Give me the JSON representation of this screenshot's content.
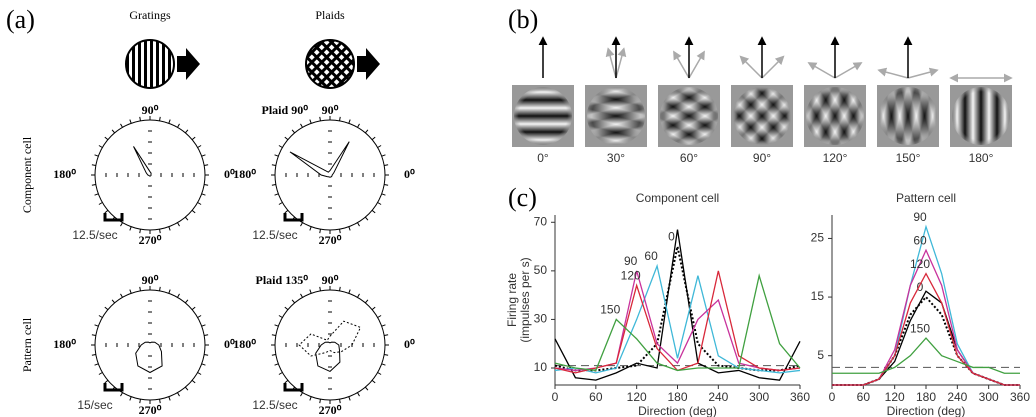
{
  "panel_labels": [
    "(a)",
    "(b)",
    "(c)"
  ],
  "panel_a": {
    "column_titles": [
      "Gratings",
      "Plaids"
    ],
    "row_labels": [
      "Component cell",
      "Pattern cell"
    ]
  },
  "panel_b": {
    "stimulus_labels": [
      "0°",
      "30°",
      "60°",
      "90°",
      "120°",
      "150°",
      "180°"
    ]
  },
  "chart_data": [
    {
      "type": "polar",
      "angle_labels": [
        "90⁰",
        "0⁰",
        "180⁰",
        "270⁰"
      ],
      "scale_bar": "12.5/sec",
      "directions": [
        0,
        30,
        60,
        90,
        120,
        150,
        180,
        210,
        240,
        270,
        300,
        330
      ],
      "rlim": [
        0,
        50
      ],
      "series": [
        {
          "color": "#000000",
          "style": "solid",
          "values": [
            1,
            1,
            2,
            3,
            30,
            4,
            2,
            1,
            1,
            1,
            1,
            1
          ]
        }
      ]
    },
    {
      "type": "polar",
      "title": "Plaid 90⁰",
      "angle_labels": [
        "90⁰",
        "0⁰",
        "180⁰",
        "270⁰"
      ],
      "scale_bar": "12.5/sec",
      "directions": [
        0,
        30,
        60,
        90,
        120,
        150,
        180,
        210,
        240,
        270,
        300,
        330
      ],
      "rlim": [
        0,
        50
      ],
      "series": [
        {
          "color": "#000000",
          "style": "solid",
          "values": [
            2,
            4,
            35,
            4,
            3,
            42,
            8,
            3,
            2,
            2,
            2,
            2
          ]
        }
      ]
    },
    {
      "type": "polar",
      "angle_labels": [
        "90⁰",
        "0⁰",
        "180⁰",
        "270⁰"
      ],
      "scale_bar": "15/sec",
      "directions": [
        0,
        30,
        60,
        90,
        120,
        150,
        180,
        210,
        240,
        270,
        300,
        330
      ],
      "rlim": [
        0,
        50
      ],
      "series": [
        {
          "color": "#000000",
          "style": "solid",
          "values": [
            8,
            5,
            3,
            2,
            3,
            5,
            8,
            15,
            22,
            25,
            22,
            12
          ]
        }
      ]
    },
    {
      "type": "polar",
      "title": "Plaid 135⁰",
      "angle_labels": [
        "90⁰",
        "0⁰",
        "180⁰",
        "270⁰"
      ],
      "scale_bar": "12.5/sec",
      "directions": [
        0,
        30,
        60,
        90,
        120,
        150,
        180,
        210,
        240,
        270,
        300,
        330
      ],
      "rlim": [
        0,
        50
      ],
      "series": [
        {
          "color": "#000000",
          "style": "solid",
          "values": [
            8,
            5,
            3,
            2,
            3,
            5,
            8,
            15,
            22,
            24,
            18,
            10
          ]
        },
        {
          "color": "#000000",
          "style": "dotted",
          "values": [
            20,
            32,
            25,
            8,
            5,
            20,
            28,
            20,
            8,
            5,
            8,
            12
          ]
        }
      ]
    },
    {
      "type": "line",
      "title": "Component cell",
      "x_label": "Direction (deg)",
      "y_label": [
        "Firing rate",
        "(impulses per s)"
      ],
      "x": [
        0,
        30,
        60,
        90,
        120,
        150,
        180,
        210,
        240,
        270,
        300,
        330,
        360
      ],
      "xlim": [
        0,
        360
      ],
      "xticks": [
        0,
        60,
        120,
        180,
        240,
        300,
        360
      ],
      "ylim": [
        3,
        73
      ],
      "yticks": [
        10,
        30,
        50,
        70
      ],
      "baseline": 11,
      "series": [
        {
          "color": "#000000",
          "style": "solid",
          "values": [
            22,
            6,
            5,
            8,
            12,
            10,
            67,
            12,
            8,
            9,
            6,
            5,
            21
          ]
        },
        {
          "name": "0",
          "color": "#000000",
          "style": "dotted",
          "values": [
            11,
            9,
            9,
            10,
            11,
            20,
            60,
            20,
            11,
            10,
            9,
            9,
            11
          ]
        },
        {
          "name": "60",
          "color": "#3fb8d8",
          "style": "solid",
          "values": [
            9,
            10,
            8,
            10,
            30,
            52,
            14,
            48,
            15,
            10,
            9,
            8,
            9
          ]
        },
        {
          "name": "90",
          "color": "#c8329c",
          "style": "solid",
          "values": [
            10,
            9,
            10,
            12,
            50,
            20,
            12,
            30,
            38,
            12,
            10,
            9,
            10
          ]
        },
        {
          "name": "120",
          "color": "#d8283a",
          "style": "solid",
          "values": [
            10,
            8,
            10,
            12,
            44,
            18,
            9,
            12,
            50,
            15,
            10,
            9,
            10
          ]
        },
        {
          "name": "150",
          "color": "#40a040",
          "style": "solid",
          "values": [
            12,
            10,
            9,
            30,
            22,
            12,
            9,
            10,
            10,
            10,
            48,
            20,
            10
          ]
        }
      ]
    },
    {
      "type": "line",
      "title": "Pattern cell",
      "x_label": "Direction (deg)",
      "x": [
        0,
        30,
        60,
        90,
        120,
        150,
        180,
        210,
        240,
        270,
        300,
        330,
        360
      ],
      "xlim": [
        0,
        360
      ],
      "xticks": [
        0,
        60,
        120,
        180,
        240,
        300,
        360
      ],
      "ylim": [
        0,
        29
      ],
      "yticks": [
        5,
        15,
        25
      ],
      "baseline": 3,
      "series": [
        {
          "color": "#000000",
          "style": "solid",
          "values": [
            0,
            0,
            0,
            1,
            4,
            11,
            16,
            14,
            6,
            2,
            1,
            0,
            0
          ]
        },
        {
          "name": "0",
          "color": "#000000",
          "style": "dotted",
          "values": [
            0,
            0,
            0,
            1,
            5,
            12,
            15,
            12,
            5,
            2,
            1,
            0,
            0
          ]
        },
        {
          "name": "90",
          "color": "#3fb8d8",
          "style": "solid",
          "values": [
            0,
            0,
            0,
            1,
            5,
            17,
            27,
            19,
            7,
            2,
            1,
            0,
            0
          ]
        },
        {
          "name": "60",
          "color": "#c8329c",
          "style": "solid",
          "values": [
            0,
            0,
            0,
            1,
            6,
            17,
            23,
            17,
            6,
            2,
            1,
            0,
            0
          ]
        },
        {
          "name": "120",
          "color": "#d8283a",
          "style": "solid",
          "values": [
            0,
            0,
            0,
            1,
            5,
            14,
            19,
            14,
            5,
            2,
            1,
            0,
            0
          ]
        },
        {
          "name": "150",
          "color": "#40a040",
          "style": "solid",
          "values": [
            2,
            2,
            2,
            2,
            3,
            5,
            8,
            5,
            4,
            3,
            3,
            2,
            2
          ]
        }
      ]
    }
  ]
}
